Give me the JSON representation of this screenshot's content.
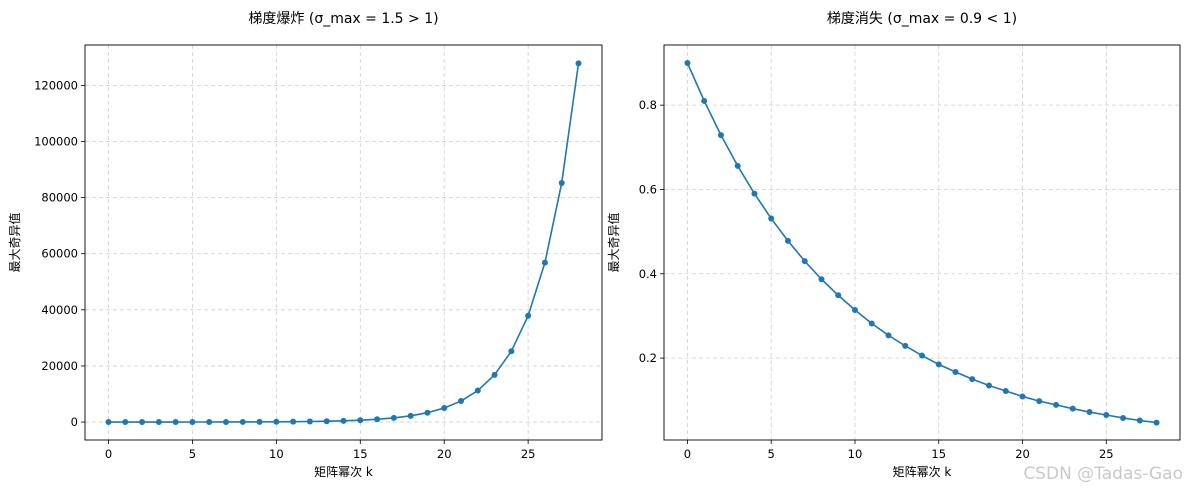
{
  "watermark": "CSDN @Tadas-Gao",
  "colors": {
    "line": "#1f77b4",
    "grid": "#cfcfcf",
    "axis": "#000000"
  },
  "chart_data": [
    {
      "type": "line",
      "title": "梯度爆炸 (σ_max = 1.5 > 1)",
      "xlabel": "矩阵幂次 k",
      "ylabel": "最大奇异值",
      "xlim": [
        -1.4,
        29.4
      ],
      "ylim": [
        -6400,
        134400
      ],
      "xticks": [
        0,
        5,
        10,
        15,
        20,
        25
      ],
      "yticks": [
        0,
        20000,
        40000,
        60000,
        80000,
        100000,
        120000
      ],
      "ytick_labels": [
        "0",
        "20000",
        "40000",
        "60000",
        "80000",
        "100000",
        "120000"
      ],
      "grid": true,
      "marker": "circle",
      "series": [
        {
          "x": [
            0,
            1,
            2,
            3,
            4,
            5,
            6,
            7,
            8,
            9,
            10,
            11,
            12,
            13,
            14,
            15,
            16,
            17,
            18,
            19,
            20,
            21,
            22,
            23,
            24,
            25,
            26,
            27,
            28
          ],
          "values": [
            1.5,
            2.25,
            3.4,
            5.1,
            7.6,
            11.4,
            17.1,
            25.6,
            38.4,
            57.7,
            86.5,
            130,
            195,
            292,
            438,
            657,
            985,
            1478,
            2217,
            3325,
            4988,
            7482,
            11223,
            16834,
            25251,
            37877,
            56815,
            85223,
            127834
          ]
        }
      ]
    },
    {
      "type": "line",
      "title": "梯度消失 (σ_max = 0.9 < 1)",
      "xlabel": "矩阵幂次 k",
      "ylabel": "最大奇异值",
      "xlim": [
        -1.4,
        29.4
      ],
      "ylim": [
        0.0057,
        0.9427
      ],
      "xticks": [
        0,
        5,
        10,
        15,
        20,
        25
      ],
      "yticks": [
        0.2,
        0.4,
        0.6,
        0.8
      ],
      "ytick_labels": [
        "0.2",
        "0.4",
        "0.6",
        "0.8"
      ],
      "grid": true,
      "marker": "circle",
      "series": [
        {
          "x": [
            0,
            1,
            2,
            3,
            4,
            5,
            6,
            7,
            8,
            9,
            10,
            11,
            12,
            13,
            14,
            15,
            16,
            17,
            18,
            19,
            20,
            21,
            22,
            23,
            24,
            25,
            26,
            27,
            28
          ],
          "values": [
            0.9,
            0.81,
            0.729,
            0.656,
            0.59,
            0.531,
            0.478,
            0.43,
            0.387,
            0.349,
            0.314,
            0.282,
            0.254,
            0.229,
            0.206,
            0.185,
            0.167,
            0.15,
            0.135,
            0.122,
            0.109,
            0.098,
            0.089,
            0.08,
            0.072,
            0.065,
            0.058,
            0.052,
            0.047
          ]
        }
      ]
    }
  ]
}
